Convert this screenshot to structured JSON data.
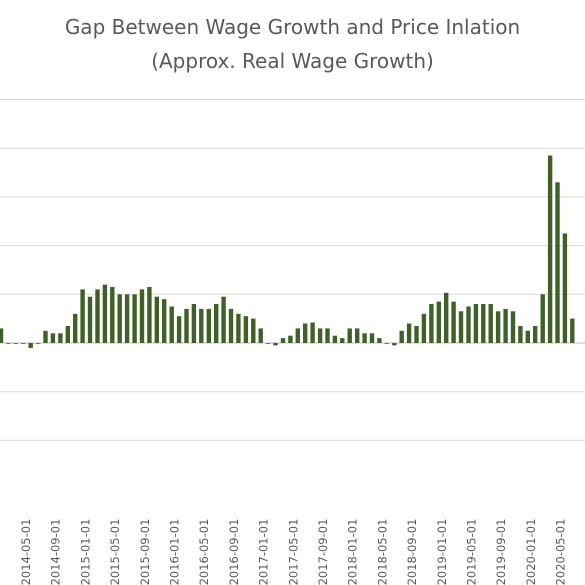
{
  "chart_data": {
    "type": "bar",
    "title": "Gap Between Wage Growth and Price Inlation",
    "subtitle": "(Approx. Real Wage Growth)",
    "xlabel": "",
    "ylabel": "",
    "ylim": [
      -4,
      5
    ],
    "grid": true,
    "legend": "none",
    "bar_color": "#3F6128",
    "x_tick_labels": [
      "2014-05-01",
      "2014-09-01",
      "2015-01-01",
      "2015-05-01",
      "2015-09-01",
      "2016-01-01",
      "2016-05-01",
      "2016-09-01",
      "2017-01-01",
      "2017-05-01",
      "2017-09-01",
      "2018-01-01",
      "2018-05-01",
      "2018-09-01",
      "2019-01-01",
      "2019-05-01",
      "2019-09-01",
      "2020-01-01",
      "2020-05-01"
    ],
    "series": [
      {
        "values": [
          0.3,
          0.0,
          0.0,
          0.0,
          -0.1,
          0.0,
          0.25,
          0.2,
          0.2,
          0.35,
          0.6,
          1.1,
          0.95,
          1.1,
          1.2,
          1.15,
          1.0,
          1.0,
          1.0,
          1.1,
          1.15,
          0.95,
          0.9,
          0.75,
          0.55,
          0.7,
          0.8,
          0.7,
          0.7,
          0.8,
          0.95,
          0.7,
          0.6,
          0.55,
          0.5,
          0.3,
          0.0,
          -0.05,
          0.1,
          0.15,
          0.3,
          0.4,
          0.42,
          0.3,
          0.3,
          0.15,
          0.1,
          0.3,
          0.3,
          0.2,
          0.2,
          0.1,
          0.0,
          -0.05,
          0.25,
          0.4,
          0.35,
          0.6,
          0.8,
          0.85,
          1.03,
          0.85,
          0.65,
          0.75,
          0.8,
          0.8,
          0.8,
          0.65,
          0.7,
          0.65,
          0.35,
          0.25,
          0.35,
          1.0,
          3.85,
          3.3,
          2.25,
          0.5
        ]
      }
    ]
  }
}
